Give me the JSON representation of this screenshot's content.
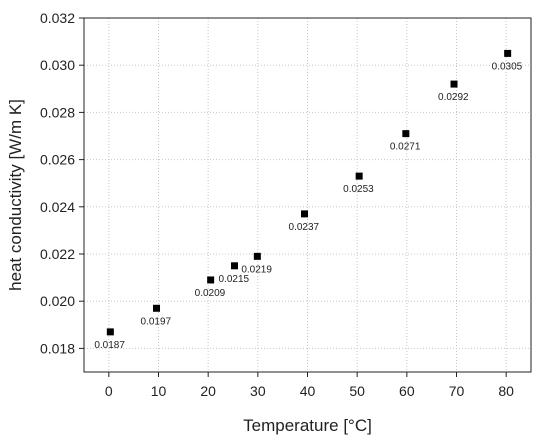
{
  "chart_data": {
    "type": "scatter",
    "title": "",
    "xlabel": "Temperature [°C]",
    "ylabel": "heat conductivity [W/m K]",
    "xlim": [
      -5,
      85
    ],
    "ylim": [
      0.017,
      0.032
    ],
    "xticks": [
      0,
      10,
      20,
      30,
      40,
      50,
      60,
      70,
      80
    ],
    "xtick_labels": [
      "0",
      "10",
      "20",
      "30",
      "40",
      "50",
      "60",
      "70",
      "80"
    ],
    "yticks": [
      0.018,
      0.02,
      0.022,
      0.024,
      0.026,
      0.028,
      0.03,
      0.032
    ],
    "ytick_labels": [
      "0.018",
      "0.020",
      "0.022",
      "0.024",
      "0.026",
      "0.028",
      "0.030",
      "0.032"
    ],
    "grid": true,
    "marker": "square",
    "colors": {
      "marker": "#000000",
      "grid": "#c8c8c8",
      "axis": "#222222"
    },
    "points": [
      {
        "x": 0.3,
        "y": 0.0187,
        "label": "0.0187"
      },
      {
        "x": 9.6,
        "y": 0.0197,
        "label": "0.0197"
      },
      {
        "x": 20.5,
        "y": 0.0209,
        "label": "0.0209"
      },
      {
        "x": 25.3,
        "y": 0.0215,
        "label": "0.0215"
      },
      {
        "x": 29.9,
        "y": 0.0219,
        "label": "0.0219"
      },
      {
        "x": 39.4,
        "y": 0.0237,
        "label": "0.0237"
      },
      {
        "x": 50.4,
        "y": 0.0253,
        "label": "0.0253"
      },
      {
        "x": 59.8,
        "y": 0.0271,
        "label": "0.0271"
      },
      {
        "x": 69.5,
        "y": 0.0292,
        "label": "0.0292"
      },
      {
        "x": 80.3,
        "y": 0.0305,
        "label": "0.0305"
      }
    ]
  }
}
